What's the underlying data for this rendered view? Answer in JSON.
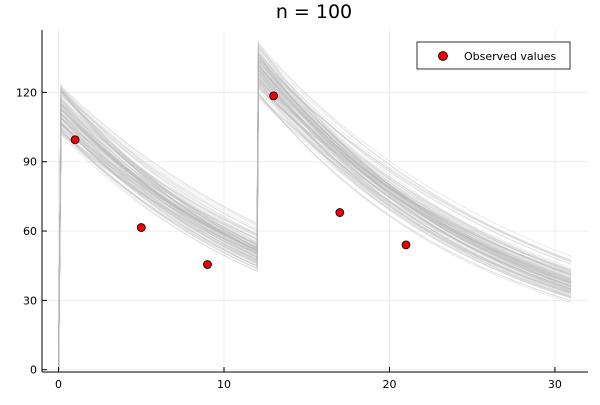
{
  "chart_data": {
    "type": "line",
    "title": "n =  100",
    "xlabel": "",
    "ylabel": "",
    "xlim": [
      -1,
      32
    ],
    "ylim": [
      -1,
      147
    ],
    "xticks": [
      0,
      10,
      20,
      30
    ],
    "yticks": [
      0,
      30,
      60,
      90,
      120
    ],
    "grid": true,
    "legend_position": "top-right",
    "band": {
      "style": "100 simulated concentration curves (light gray)",
      "dose_times": [
        0,
        12
      ],
      "peak_min": [
        103,
        117
      ],
      "peak_max": [
        124,
        144
      ],
      "elimination_rate_min": 0.045,
      "elimination_rate_max": 0.085,
      "x_end": 31,
      "color": "#b8b8b8"
    },
    "series": [
      {
        "name": "Observed values",
        "type": "scatter",
        "color": "#e8000b",
        "x": [
          1,
          5,
          9,
          13,
          17,
          21
        ],
        "y": [
          99.5,
          61.5,
          45.5,
          118.5,
          68,
          54
        ]
      }
    ]
  }
}
